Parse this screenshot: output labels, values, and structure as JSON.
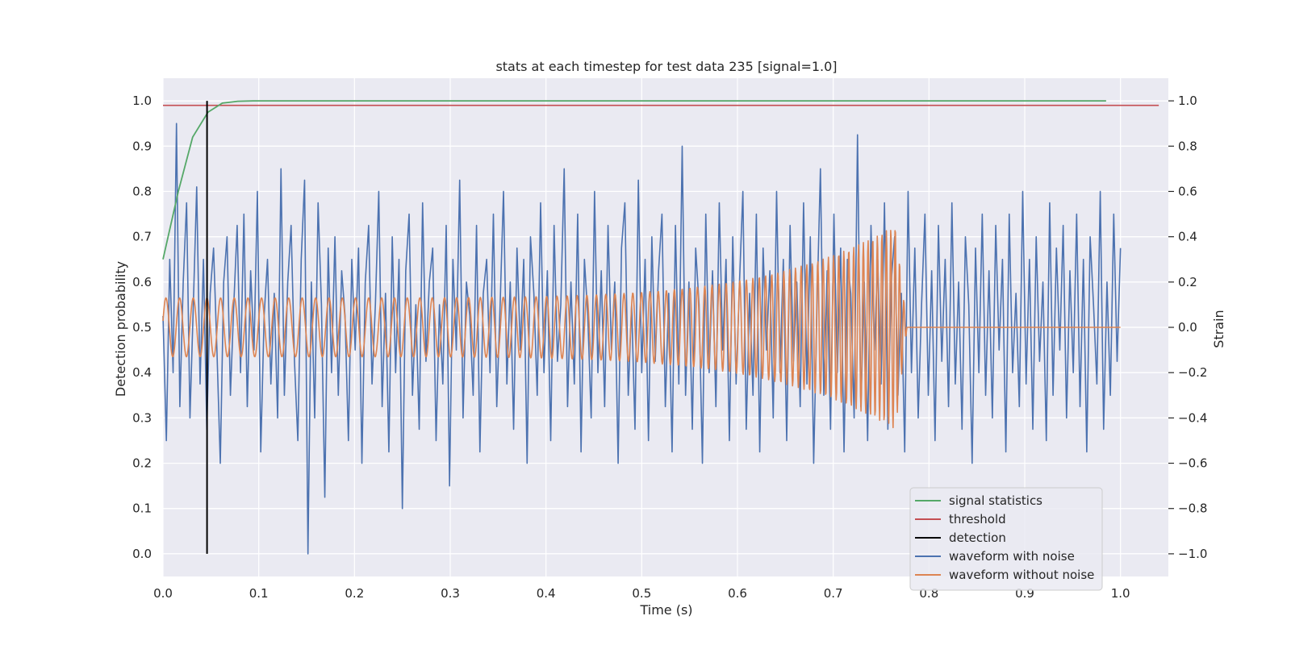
{
  "chart_data": {
    "type": "line",
    "title": "stats at each timestep for test data 235 [signal=1.0]",
    "xlabel": "Time (s)",
    "ylabel": "Detection probability",
    "ylabel_right": "Strain",
    "xlim": [
      0.0,
      1.05
    ],
    "ylim": [
      -0.05,
      1.05
    ],
    "ylim_right": [
      -1.1,
      1.1
    ],
    "xticks": [
      0.0,
      0.1,
      0.2,
      0.3,
      0.4,
      0.5,
      0.6,
      0.7,
      0.8,
      0.9,
      1.0
    ],
    "xtick_labels": [
      "0.0",
      "0.1",
      "0.2",
      "0.3",
      "0.4",
      "0.5",
      "0.6",
      "0.7",
      "0.8",
      "0.9",
      "1.0"
    ],
    "yticks": [
      0.0,
      0.1,
      0.2,
      0.3,
      0.4,
      0.5,
      0.6,
      0.7,
      0.8,
      0.9,
      1.0
    ],
    "ytick_labels": [
      "0.0",
      "0.1",
      "0.2",
      "0.3",
      "0.4",
      "0.5",
      "0.6",
      "0.7",
      "0.8",
      "0.9",
      "1.0"
    ],
    "yticks_right": [
      -1.0,
      -0.8,
      -0.6,
      -0.4,
      -0.2,
      0.0,
      0.2,
      0.4,
      0.6,
      0.8,
      1.0
    ],
    "ytick_labels_right": [
      "−1.0",
      "−0.8",
      "−0.6",
      "−0.4",
      "−0.2",
      "0.0",
      "0.2",
      "0.4",
      "0.6",
      "0.8",
      "1.0"
    ],
    "grid": true,
    "legend_position": "lower-right",
    "series": [
      {
        "name": "signal statistics",
        "color": "#55a868",
        "axis": "left",
        "x": [
          0.0,
          0.016,
          0.031,
          0.047,
          0.062,
          0.078,
          0.094,
          0.985
        ],
        "y": [
          0.65,
          0.8,
          0.92,
          0.975,
          0.995,
          0.999,
          1.0,
          1.0
        ]
      },
      {
        "name": "threshold",
        "color": "#c44e52",
        "axis": "left",
        "x": [
          0.0,
          1.04
        ],
        "y": [
          0.99,
          0.99
        ]
      },
      {
        "name": "detection",
        "color": "#000000",
        "axis": "left",
        "x": [
          0.046,
          0.046
        ],
        "y": [
          0.0,
          1.0
        ]
      },
      {
        "name": "waveform with noise",
        "color": "#4c72b0",
        "axis": "right",
        "note_x_range": [
          0.0,
          1.0
        ],
        "y": [
          0.05,
          -0.5,
          0.3,
          -0.2,
          0.9,
          -0.35,
          0.2,
          0.55,
          -0.4,
          0.1,
          0.62,
          -0.25,
          0.3,
          -0.45,
          0.15,
          0.35,
          -0.1,
          -0.6,
          0.2,
          0.4,
          -0.3,
          0.1,
          0.45,
          -0.2,
          0.5,
          -0.35,
          0.25,
          -0.1,
          0.6,
          -0.55,
          0.05,
          0.3,
          -0.25,
          0.15,
          -0.4,
          0.7,
          -0.3,
          0.2,
          0.45,
          -0.15,
          -0.5,
          0.3,
          0.65,
          -1.0,
          0.2,
          -0.4,
          0.55,
          0.1,
          -0.75,
          0.35,
          -0.2,
          0.4,
          -0.3,
          0.25,
          0.05,
          -0.5,
          0.3,
          -0.1,
          0.35,
          -0.6,
          0.2,
          0.45,
          -0.25,
          0.1,
          0.6,
          -0.35,
          0.15,
          -0.55,
          0.4,
          -0.2,
          0.3,
          -0.8,
          0.25,
          0.5,
          -0.3,
          0.1,
          -0.45,
          0.55,
          -0.15,
          0.2,
          0.35,
          -0.5,
          0.1,
          -0.25,
          0.45,
          -0.7,
          0.3,
          -0.1,
          0.65,
          -0.4,
          0.2,
          0.05,
          -0.3,
          0.45,
          -0.55,
          0.15,
          0.3,
          -0.2,
          0.5,
          -0.35,
          0.1,
          0.6,
          -0.25,
          0.2,
          -0.45,
          0.35,
          -0.1,
          0.3,
          -0.6,
          0.4,
          0.15,
          -0.3,
          0.55,
          -0.2,
          0.25,
          -0.5,
          0.45,
          -0.15,
          0.1,
          0.7,
          -0.35,
          0.2,
          -0.25,
          0.5,
          -0.55,
          0.3,
          0.05,
          -0.4,
          0.6,
          -0.2,
          0.25,
          -0.35,
          0.45,
          -0.1,
          0.2,
          -0.6,
          0.35,
          0.55,
          -0.3,
          0.1,
          -0.45,
          0.65,
          -0.2,
          0.3,
          -0.5,
          0.4,
          -0.15,
          0.25,
          0.5,
          -0.35,
          0.15,
          -0.55,
          0.45,
          -0.25,
          0.8,
          -0.3,
          0.2,
          -0.45,
          0.35,
          0.1,
          -0.6,
          0.5,
          -0.2,
          0.25,
          -0.35,
          0.55,
          -0.1,
          0.3,
          -0.5,
          0.4,
          -0.25,
          0.2,
          0.6,
          -0.45,
          0.15,
          -0.3,
          0.5,
          -0.55,
          0.35,
          -0.1,
          0.25,
          -0.4,
          0.6,
          -0.2,
          0.3,
          -0.5,
          0.45,
          -0.15,
          0.2,
          -0.35,
          0.55,
          -0.25,
          0.4,
          -0.6,
          0.1,
          0.7,
          -0.3,
          0.25,
          -0.45,
          0.5,
          -0.2,
          0.35,
          -0.55,
          0.3,
          0.15,
          -0.4,
          0.85,
          -0.35,
          0.2,
          -0.5,
          0.45,
          -0.1,
          0.3,
          -0.25,
          0.55,
          -0.45,
          0.2,
          0.4,
          -0.3,
          0.15,
          -0.55,
          0.6,
          -0.2,
          0.35,
          -0.4,
          0.1,
          0.5,
          -0.3,
          0.25,
          -0.5,
          0.45,
          -0.15,
          0.3,
          -0.35,
          0.55,
          -0.25,
          0.2,
          -0.45,
          0.4,
          0.1,
          -0.6,
          0.35,
          -0.2,
          0.5,
          -0.3,
          0.25,
          -0.4,
          0.45,
          -0.1,
          0.3,
          -0.55,
          0.5,
          -0.2,
          0.15,
          -0.35,
          0.6,
          -0.25,
          0.3,
          -0.45,
          0.4,
          -0.15,
          0.2,
          -0.5,
          0.55,
          -0.3,
          0.35,
          -0.1,
          0.45,
          -0.4,
          0.25,
          -0.2,
          0.5,
          -0.35,
          0.3,
          -0.55,
          0.4,
          0.1,
          -0.25,
          0.6,
          -0.45,
          0.2,
          -0.3,
          0.5,
          -0.15,
          0.35
        ]
      },
      {
        "name": "waveform without noise",
        "color": "#dd8452",
        "axis": "right",
        "note": "chirp oscillating around 0 with amplitude ~0.13 growing to ~0.45 near t=0.765, merging afterwards at 0",
        "x_merge": 0.765,
        "amp_start": 0.13,
        "amp_end": 0.45,
        "freq_start": 70,
        "freq_end": 220
      }
    ]
  }
}
